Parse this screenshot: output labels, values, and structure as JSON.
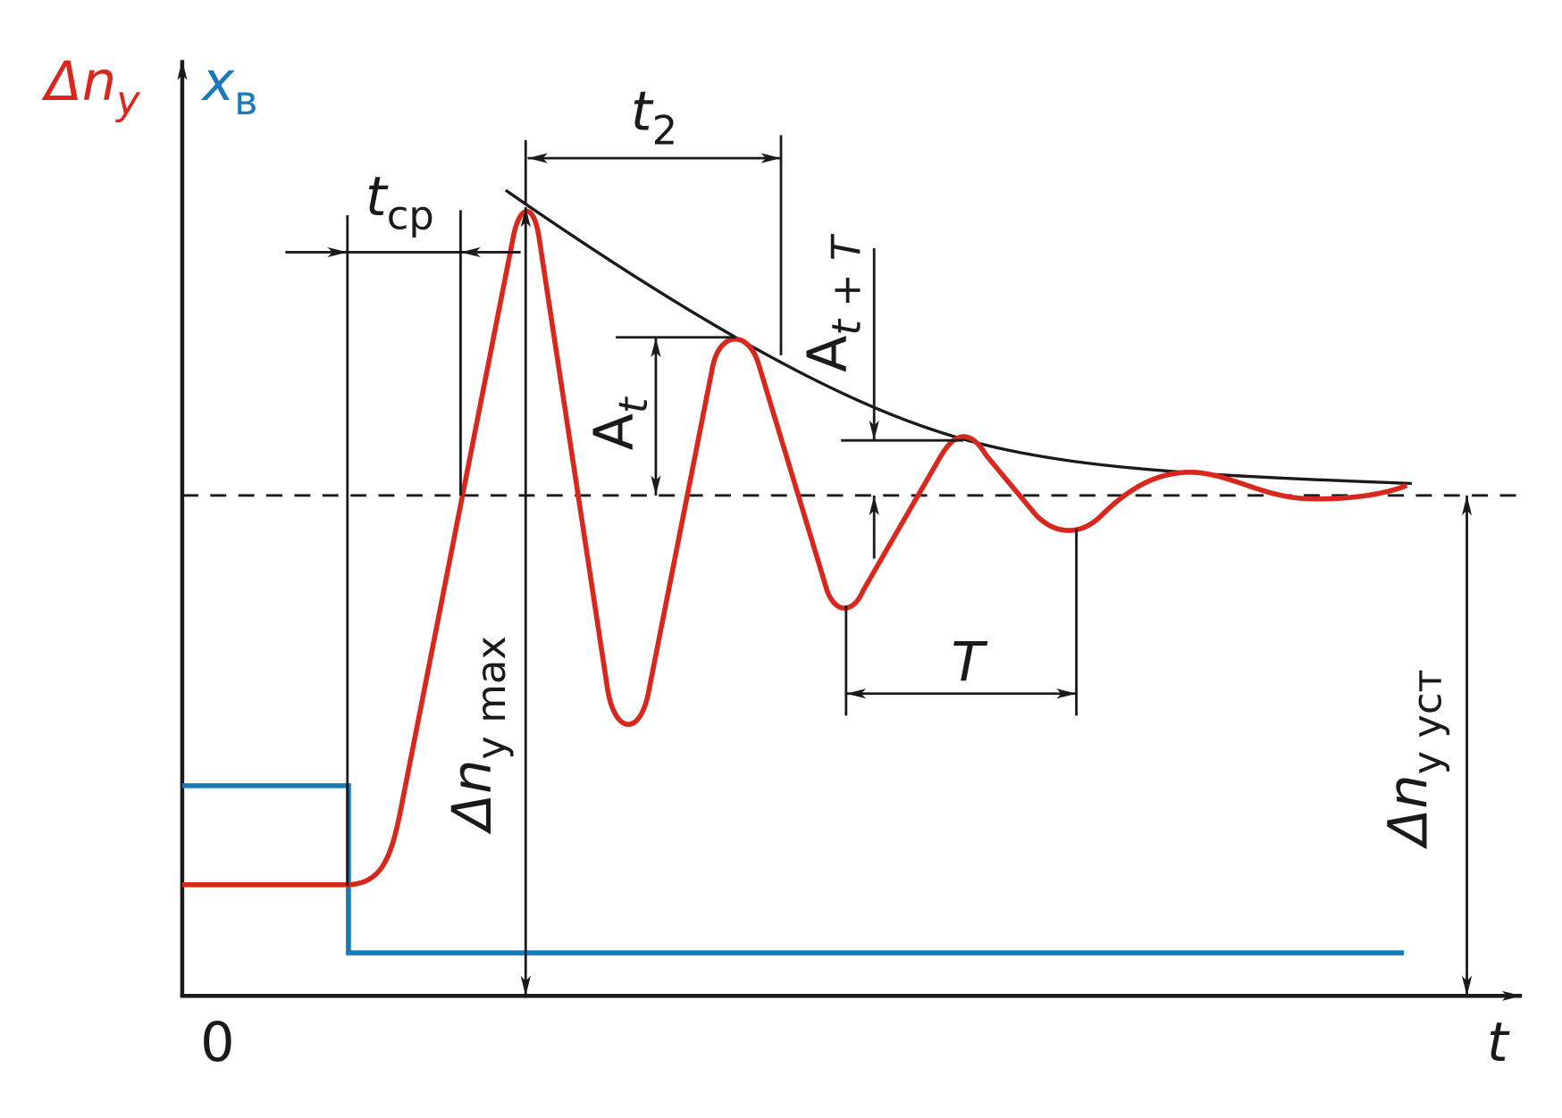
{
  "axes": {
    "y_label": {
      "main": "Δn",
      "sub": "y"
    },
    "y2_label": {
      "main": "x",
      "sub": "в"
    },
    "x_label": "t",
    "origin": "0"
  },
  "annotations": {
    "t2": {
      "main": "t",
      "sub": "2"
    },
    "t_cp": {
      "main": "t",
      "sub": "ср"
    },
    "A_t": {
      "main": "A",
      "sub": "t"
    },
    "A_tT": {
      "main": "A",
      "sub": "t + T"
    },
    "T": "T",
    "dn_max": {
      "main": "Δn",
      "sub": "y max"
    },
    "dn_ust": {
      "main": "Δn",
      "sub": "y уст"
    }
  }
}
